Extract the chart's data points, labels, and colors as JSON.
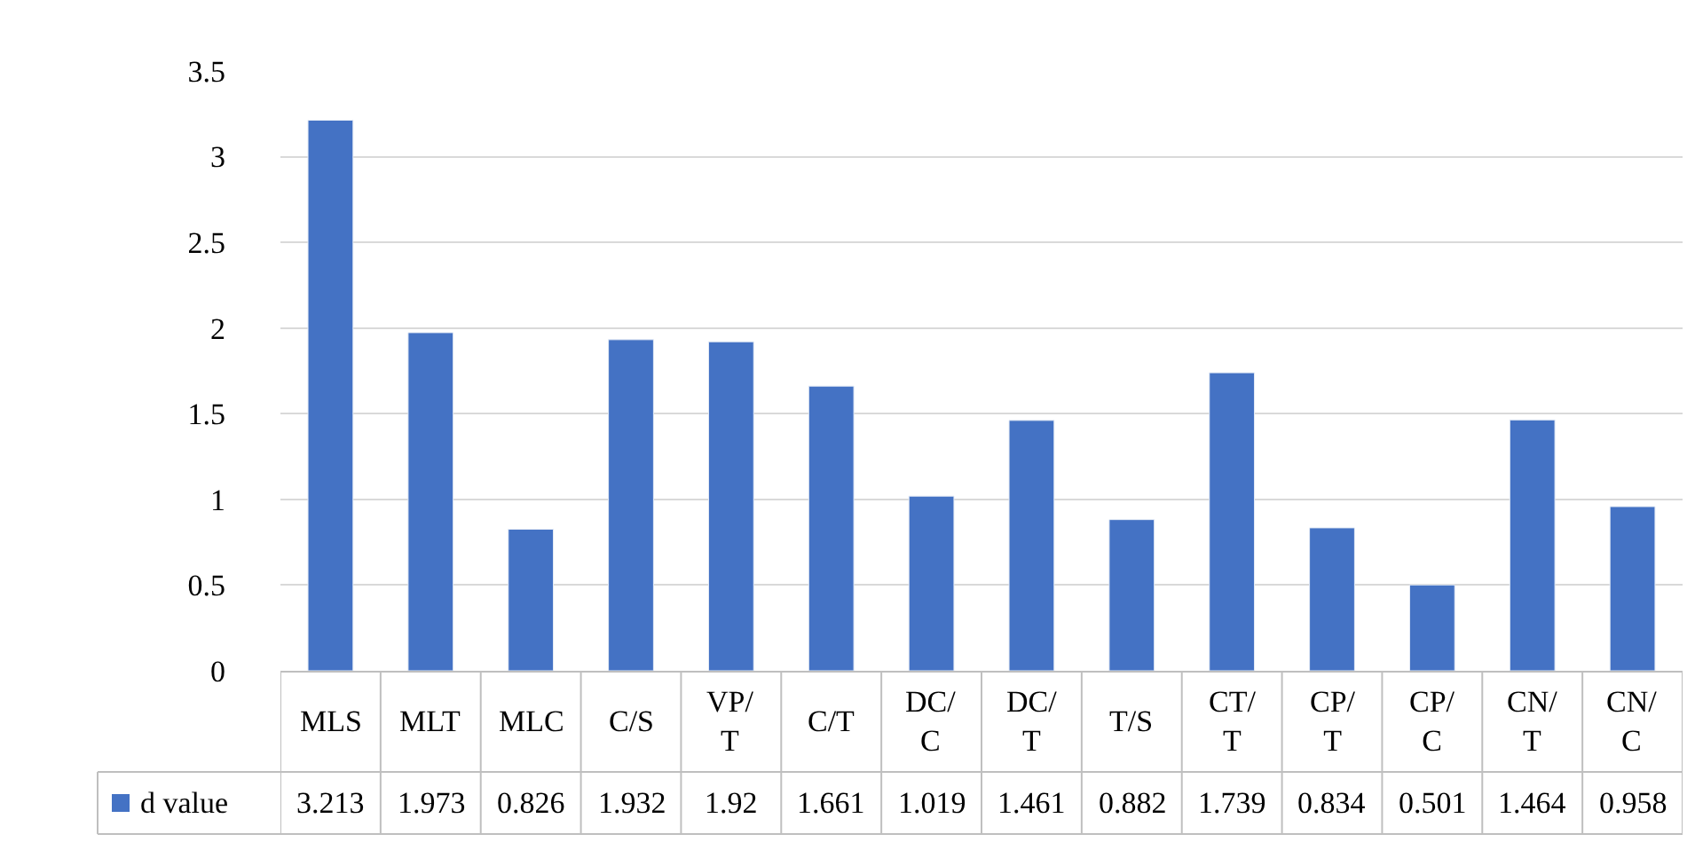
{
  "chart_data": {
    "type": "bar",
    "categories": [
      "MLS",
      "MLT",
      "MLC",
      "C/S",
      "VP/T",
      "C/T",
      "DC/C",
      "DC/T",
      "T/S",
      "CT/T",
      "CP/T",
      "CP/C",
      "CN/T",
      "CN/C"
    ],
    "series": [
      {
        "name": "d value",
        "color": "#4472c4",
        "values": [
          3.213,
          1.973,
          0.826,
          1.932,
          1.92,
          1.661,
          1.019,
          1.461,
          0.882,
          1.739,
          0.834,
          0.501,
          1.464,
          0.958
        ]
      }
    ],
    "ylim": [
      0,
      3.5
    ],
    "yticks": [
      0,
      0.5,
      1,
      1.5,
      2,
      2.5,
      3,
      3.5
    ],
    "grid": "y",
    "data_labels": true
  }
}
